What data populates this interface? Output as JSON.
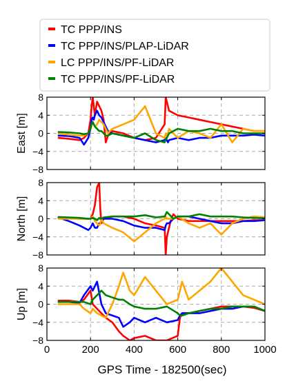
{
  "chart_data": {
    "type": "line",
    "xlabel": "GPS Time - 182500(sec)",
    "xlim": [
      0,
      1000
    ],
    "x_ticks": [
      0,
      200,
      400,
      600,
      800,
      1000
    ],
    "legend": {
      "placement": "top",
      "entries": [
        {
          "name": "TC PPP/INS",
          "color": "#ff0000"
        },
        {
          "name": "TC PPP/INS/PLAP-LiDAR",
          "color": "#0000ff"
        },
        {
          "name": "LC PPP/INS/PF-LiDAR",
          "color": "#ffa500"
        },
        {
          "name": "TC PPP/INS/PF-LiDAR",
          "color": "#008000"
        }
      ]
    },
    "grid": true,
    "subplots": [
      {
        "ylabel": "East [m]",
        "ylim": [
          -8,
          8
        ],
        "y_ticks": [
          8,
          4,
          0,
          -4,
          -8
        ],
        "x": [
          50,
          100,
          150,
          170,
          190,
          200,
          205,
          210,
          215,
          220,
          230,
          240,
          250,
          260,
          270,
          280,
          300,
          350,
          400,
          450,
          500,
          540,
          545,
          550,
          555,
          560,
          600,
          650,
          700,
          750,
          800,
          850,
          900,
          950,
          1000
        ],
        "series": [
          {
            "name": "TC PPP/INS",
            "color": "#ff0000",
            "values": [
              -1,
              -1.2,
              -1.5,
              -1,
              0,
              3,
              6,
              9,
              6,
              4,
              7,
              6,
              5,
              3,
              -2,
              -0.5,
              0.5,
              0,
              -1,
              -1.5,
              -1,
              2,
              9,
              7,
              6,
              5,
              4,
              3.5,
              3,
              2.5,
              2,
              1.5,
              1,
              0.5,
              0.5
            ]
          },
          {
            "name": "TC PPP/INS/PLAP-LiDAR",
            "color": "#0000ff",
            "values": [
              -0.5,
              -0.6,
              -1,
              -2.5,
              -1,
              1,
              3,
              3.5,
              3,
              4,
              5,
              4,
              3.5,
              2.5,
              1.5,
              0.5,
              0,
              -0.5,
              -1,
              -1.5,
              -2,
              -1.5,
              -1,
              -1.5,
              -2,
              -1.5,
              -1,
              -1.5,
              -1,
              -1,
              -0.5,
              -0.5,
              -0.5,
              -0.3,
              -0.5
            ]
          },
          {
            "name": "LC PPP/INS/PF-LiDAR",
            "color": "#ffa500",
            "values": [
              0,
              -0.3,
              -0.5,
              -0.5,
              0,
              1,
              2,
              2.5,
              2,
              1.5,
              2,
              3,
              2.5,
              2,
              1,
              0,
              1,
              2,
              3,
              6,
              0,
              -1,
              0,
              -0.5,
              0,
              1,
              -1,
              0.5,
              0,
              -1,
              2,
              -2,
              1,
              0.5,
              0.5
            ]
          },
          {
            "name": "TC PPP/INS/PF-LiDAR",
            "color": "#008000",
            "values": [
              0.3,
              0.2,
              0,
              -0.2,
              0,
              1,
              2,
              2.5,
              2,
              1.5,
              1,
              0.5,
              0.5,
              0,
              -0.5,
              -0.5,
              0,
              -0.5,
              -1,
              0,
              -1.5,
              -2,
              -1.5,
              -1,
              -0.5,
              0,
              1,
              0.5,
              0.5,
              1,
              0.5,
              0.5,
              0,
              0,
              0
            ]
          }
        ]
      },
      {
        "ylabel": "North [m]",
        "ylim": [
          -8,
          8
        ],
        "y_ticks": [
          8,
          4,
          0,
          -4,
          -8
        ],
        "x": [
          50,
          100,
          150,
          190,
          200,
          210,
          220,
          230,
          240,
          245,
          250,
          260,
          300,
          350,
          400,
          450,
          500,
          540,
          545,
          550,
          560,
          570,
          580,
          600,
          650,
          700,
          750,
          800,
          850,
          900,
          950,
          1000
        ],
        "series": [
          {
            "name": "TC PPP/INS",
            "color": "#ff0000",
            "values": [
              0.3,
              0.2,
              0,
              0,
              0,
              1,
              3,
              7,
              9,
              2,
              -1,
              0,
              0.5,
              0.5,
              0,
              -1,
              -1.5,
              -2,
              -8,
              -4,
              -2,
              0,
              1,
              0,
              -0.5,
              -0.5,
              -0.5,
              -0.5,
              -0.5,
              -0.5,
              -0.3,
              -0.3
            ]
          },
          {
            "name": "TC PPP/INS/PLAP-LiDAR",
            "color": "#0000ff",
            "values": [
              0.3,
              -0.5,
              -1.5,
              -2.5,
              -2,
              -1,
              -2,
              -2,
              -1,
              -1,
              -0.5,
              0,
              0,
              -0.5,
              -1.5,
              -2,
              -2,
              -2.5,
              -1.5,
              -1,
              -1,
              -0.5,
              0,
              0.5,
              0.5,
              0,
              -0.5,
              -1,
              -1,
              -0.5,
              -0.5,
              -0.3
            ]
          },
          {
            "name": "LC PPP/INS/PF-LiDAR",
            "color": "#ffa500",
            "values": [
              0,
              0,
              0,
              0,
              0,
              0.5,
              -0.5,
              -1,
              -1.5,
              -1,
              0,
              -1,
              -2,
              -3,
              -5,
              -3,
              -1,
              0,
              0.5,
              0,
              0,
              0,
              0,
              0.5,
              -1,
              -2,
              -1,
              -3.5,
              -1,
              0,
              0.5,
              0.3
            ]
          },
          {
            "name": "TC PPP/INS/PF-LiDAR",
            "color": "#008000",
            "values": [
              0.4,
              0.3,
              0.2,
              0,
              0,
              0.2,
              0,
              -0.3,
              0.2,
              0,
              0,
              0.3,
              0.5,
              0.5,
              0.5,
              0.8,
              0.3,
              0.5,
              1,
              1.5,
              1,
              0.5,
              0,
              0.5,
              0.5,
              1,
              0.5,
              0.5,
              0.5,
              0.3,
              0.2,
              0.1
            ]
          }
        ]
      },
      {
        "ylabel": "Up [m]",
        "ylim": [
          -8,
          8
        ],
        "y_ticks": [
          8,
          4,
          0,
          -4,
          -8
        ],
        "x": [
          50,
          100,
          150,
          170,
          200,
          210,
          230,
          250,
          270,
          300,
          330,
          350,
          380,
          400,
          450,
          500,
          550,
          600,
          610,
          620,
          650,
          700,
          750,
          800,
          850,
          900,
          950,
          1000
        ],
        "series": [
          {
            "name": "TC PPP/INS",
            "color": "#ff0000",
            "values": [
              0.8,
              0.8,
              0.5,
              1,
              3,
              0,
              -1,
              -2,
              -3,
              -4,
              -6,
              -7,
              -8,
              -7.5,
              -7,
              -8,
              -8,
              -7,
              -3,
              -2,
              -2,
              -1.5,
              -1,
              -0.5,
              -0.5,
              -0.5,
              -0.8,
              -1.5
            ]
          },
          {
            "name": "TC PPP/INS/PLAP-LiDAR",
            "color": "#0000ff",
            "values": [
              0.5,
              0.5,
              0.3,
              2,
              4,
              3,
              5,
              0,
              -2,
              -2.5,
              -3,
              -5,
              -4,
              -3,
              -4,
              -3,
              -4,
              -3.5,
              -2.5,
              -2,
              -2,
              -2,
              -1.5,
              -1,
              -1,
              -0.5,
              -0.5,
              -1.5
            ]
          },
          {
            "name": "LC PPP/INS/PF-LiDAR",
            "color": "#ffa500",
            "values": [
              0,
              0,
              0,
              -1,
              -2,
              -1,
              -2,
              -2.5,
              -3,
              0,
              4,
              7,
              3,
              2,
              6,
              3,
              0,
              1,
              3,
              5,
              1,
              3,
              5,
              8,
              5,
              2,
              1,
              0
            ]
          },
          {
            "name": "TC PPP/INS/PF-LiDAR",
            "color": "#008000",
            "values": [
              0.5,
              0.5,
              0.5,
              0.5,
              0,
              1,
              2,
              3,
              2,
              1.5,
              1,
              1,
              0,
              -0.5,
              -1,
              -1,
              -0.5,
              -2,
              -2.5,
              -2.5,
              -2,
              -1.5,
              -1,
              -1,
              -0.5,
              -0.5,
              -0.5,
              -1.5
            ]
          }
        ]
      }
    ]
  }
}
